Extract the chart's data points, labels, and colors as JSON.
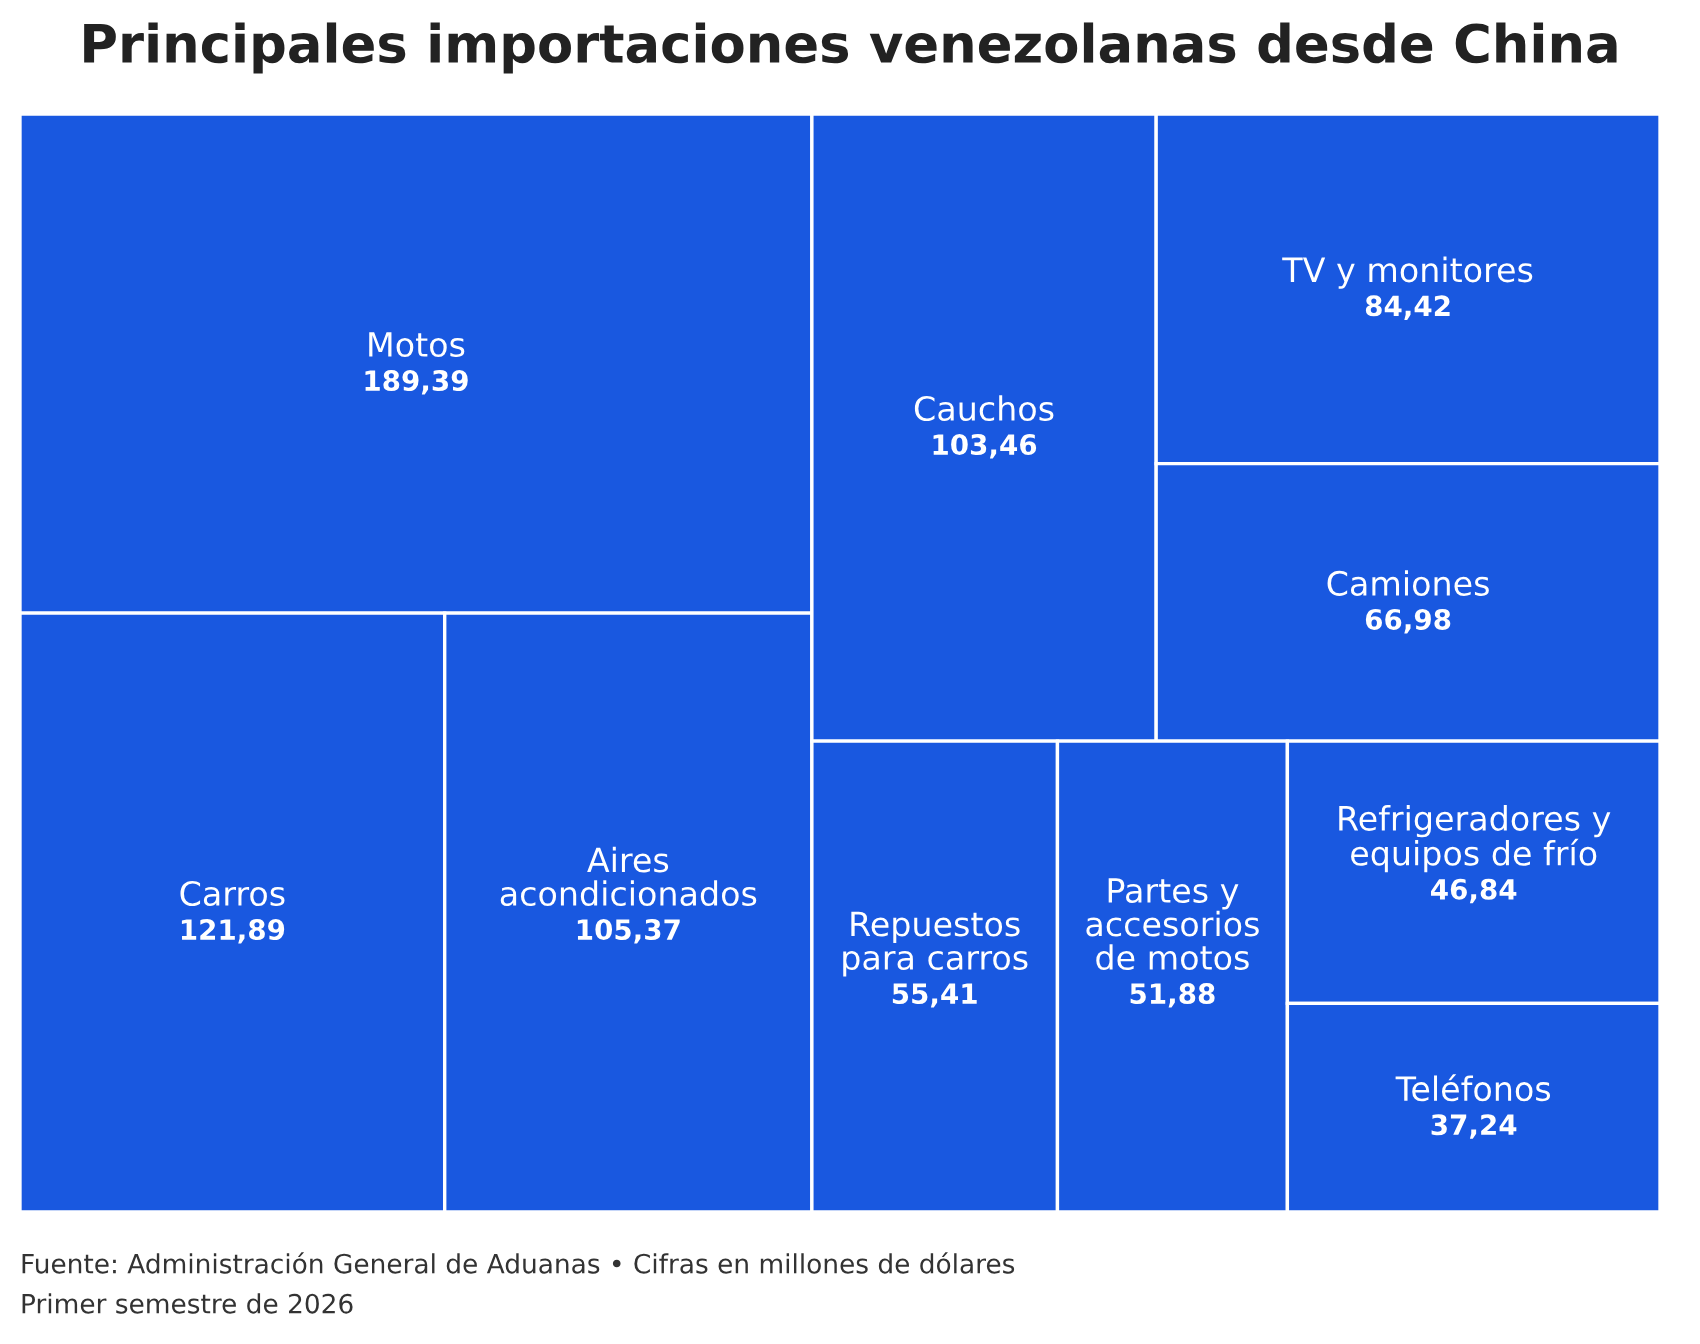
{
  "chart_data": {
    "type": "other",
    "title": "Principales importaciones venezolanas desde China",
    "categories": [
      "Motos",
      "Carros",
      "Aires acondicionados",
      "Cauchos",
      "TV y monitores",
      "Camiones",
      "Repuestos para carros",
      "Partes y accesorios de motos",
      "Refrigeradores y equipos de frío",
      "Teléfonos"
    ],
    "values": [
      189.39,
      121.89,
      105.37,
      103.46,
      84.42,
      66.98,
      55.41,
      51.88,
      46.84,
      37.24
    ],
    "value_labels": [
      "189,39",
      "121,89",
      "105,37",
      "103,46",
      "84,42",
      "66,98",
      "55,41",
      "51,88",
      "46,84",
      "37,24"
    ],
    "color": "#1958e0",
    "annotations": [
      "Fuente: Administración General de Aduanas • Cifras en millones de dólares",
      "Primer semestre de 2026"
    ]
  }
}
